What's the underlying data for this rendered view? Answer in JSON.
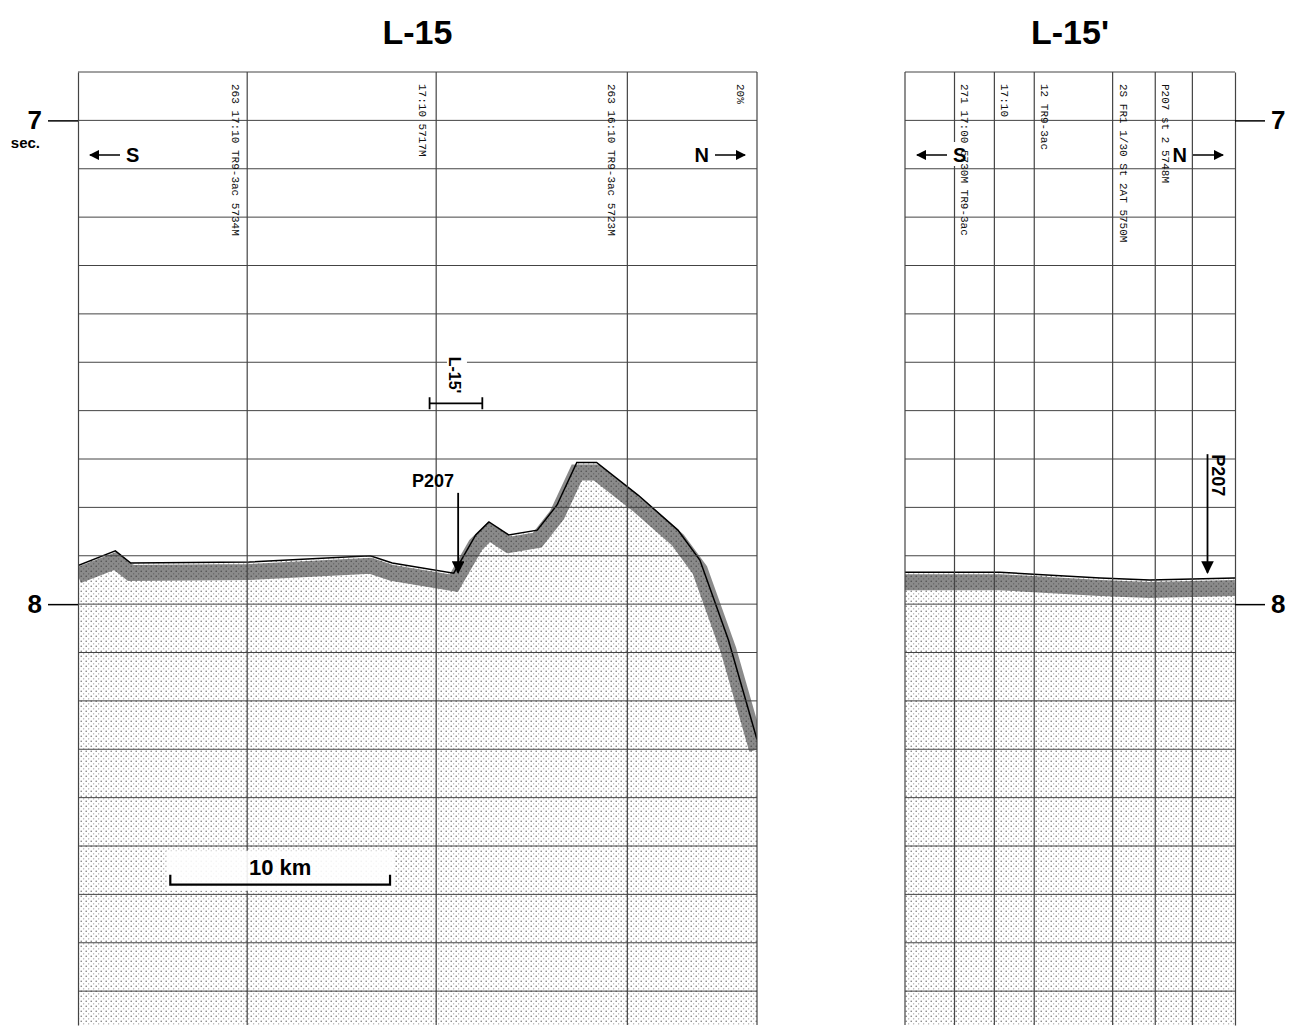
{
  "chart_data": [
    {
      "type": "line",
      "title": "L-15",
      "xlim": [
        0,
        30.9
      ],
      "ylim": [
        6.9,
        8.87
      ],
      "yticks": [
        7,
        8
      ],
      "ylabel": "sec.",
      "tick_labels": "y",
      "grid": true,
      "ygrid": [
        6.9,
        7.0,
        7.1,
        7.2,
        7.3,
        7.4,
        7.5,
        7.6,
        7.7,
        7.8,
        7.9,
        8.0,
        8.1,
        8.2,
        8.3,
        8.4,
        8.5,
        8.6,
        8.7,
        8.8
      ],
      "xgrid": [
        7.7,
        16.3,
        25.0
      ],
      "x": [
        0,
        1.7,
        2.4,
        7.8,
        13.3,
        14.3,
        17.1,
        18.1,
        18.7,
        19.6,
        20.9,
        21.8,
        22.7,
        23.6,
        25.5,
        27.3,
        28.3,
        29.6,
        30.9
      ],
      "series": [
        {
          "color": "#000000",
          "values": [
            7.92,
            7.89,
            7.915,
            7.913,
            7.9,
            7.915,
            7.936,
            7.857,
            7.83,
            7.857,
            7.847,
            7.795,
            7.707,
            7.707,
            7.775,
            7.847,
            7.909,
            8.074,
            8.28
          ]
        }
      ],
      "directions": [
        "S",
        "N"
      ],
      "annotations": [
        {
          "x": 7.0,
          "text": "263 17:10 TR9-3ac 5734M"
        },
        {
          "x": 15.5,
          "text": "17:10 5717M"
        },
        {
          "x": 24.1,
          "text": "263 16:10 TR9-3ac 5723M"
        },
        {
          "x": 30.0,
          "text": "20%"
        }
      ],
      "markers": [
        {
          "x": 17.3,
          "y": [
            7.77,
            7.935
          ],
          "label": "P207"
        }
      ],
      "extent": {
        "range": [
          16.0,
          18.4
        ],
        "y": 7.585,
        "label": "L-15'"
      },
      "scale_bar": {
        "x": 4.2,
        "y": 8.58,
        "value": 10,
        "label": "10 km"
      }
    },
    {
      "type": "line",
      "title": "L-15'",
      "xlim": [
        0,
        2.4
      ],
      "ylim": [
        6.9,
        8.87
      ],
      "yticks": [
        7,
        8
      ],
      "tick_labels": "y",
      "grid": true,
      "ygrid": [
        6.9,
        7.0,
        7.1,
        7.2,
        7.3,
        7.4,
        7.5,
        7.6,
        7.7,
        7.8,
        7.9,
        8.0,
        8.1,
        8.2,
        8.3,
        8.4,
        8.5,
        8.6,
        8.7,
        8.8
      ],
      "xgrid": [
        0.36,
        0.65,
        0.94,
        1.51,
        1.82,
        2.09
      ],
      "x": [
        0,
        0.69,
        1.42,
        1.78,
        2.4
      ],
      "series": [
        {
          "color": "#000000",
          "values": [
            7.934,
            7.934,
            7.946,
            7.95,
            7.946
          ]
        }
      ],
      "directions": [
        "S",
        "N"
      ],
      "annotations": [
        {
          "x": 0.41,
          "text": "271 17:00 5730M TR9-3ac"
        },
        {
          "x": 0.7,
          "text": "17:10"
        },
        {
          "x": 0.99,
          "text": "12 TR9-3ac"
        },
        {
          "x": 1.56,
          "text": "2S FR1 1/30 St 2AT 5750M"
        },
        {
          "x": 1.87,
          "text": "P207 st 2 5748M"
        }
      ],
      "markers": [
        {
          "x": 2.2,
          "y": [
            7.69,
            7.935
          ],
          "label": "P207"
        }
      ]
    }
  ]
}
